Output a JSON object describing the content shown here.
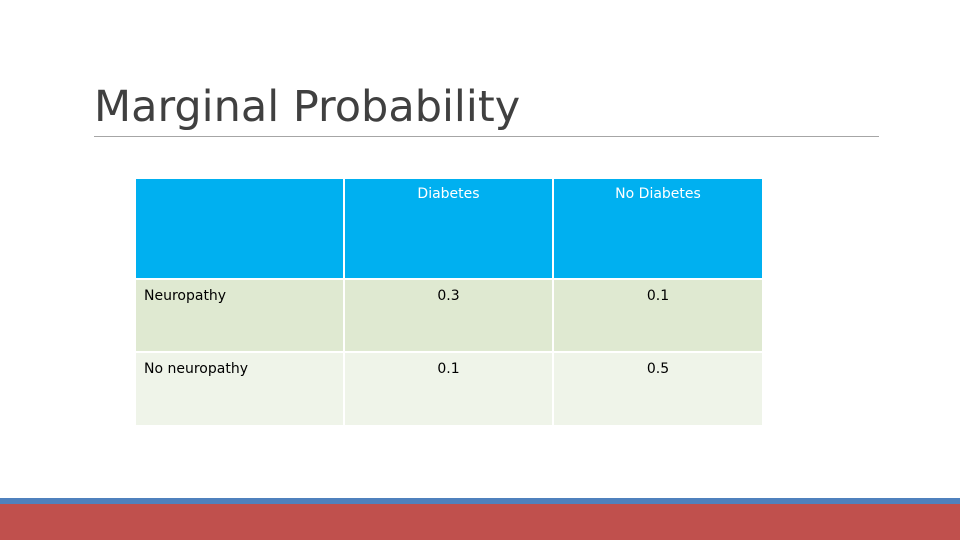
{
  "slide": {
    "title": "Marginal Probability"
  },
  "table": {
    "headers": [
      "",
      "Diabetes",
      "No Diabetes"
    ],
    "rows": [
      {
        "label": "Neuropathy",
        "cells": [
          "0.3",
          "0.1"
        ]
      },
      {
        "label": "No neuropathy",
        "cells": [
          "0.1",
          "0.5"
        ]
      }
    ]
  },
  "colors": {
    "header_bg": "#00b0f0",
    "row_odd_bg": "#dfe9d1",
    "row_even_bg": "#eff4e9",
    "title_text": "#404040",
    "title_rule": "#a6a6a6",
    "bottom_bar_blue": "#4f81bd",
    "bottom_bar_red": "#c0504d"
  }
}
